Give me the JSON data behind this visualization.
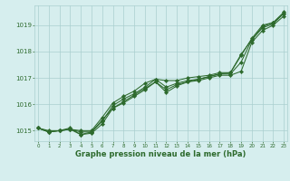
{
  "x": [
    0,
    1,
    2,
    3,
    4,
    5,
    6,
    7,
    8,
    9,
    10,
    11,
    12,
    13,
    14,
    15,
    16,
    17,
    18,
    19,
    20,
    21,
    22,
    23
  ],
  "line1": [
    1015.1,
    1015.0,
    1015.0,
    1015.1,
    1014.85,
    1014.95,
    1015.4,
    1015.85,
    1016.1,
    1016.35,
    1016.6,
    1016.85,
    1016.55,
    1016.75,
    1016.85,
    1016.95,
    1017.05,
    1017.15,
    1017.2,
    1017.9,
    1018.45,
    1018.95,
    1019.1,
    1019.45
  ],
  "line2": [
    1015.1,
    1014.95,
    1015.0,
    1015.05,
    1015.0,
    1015.0,
    1015.5,
    1016.05,
    1016.3,
    1016.5,
    1016.8,
    1016.95,
    1016.9,
    1016.9,
    1017.0,
    1017.05,
    1017.1,
    1017.2,
    1017.2,
    1017.85,
    1018.5,
    1019.0,
    1019.1,
    1019.5
  ],
  "line3": [
    1015.1,
    1014.95,
    1015.0,
    1015.05,
    1014.95,
    1014.95,
    1015.35,
    1015.95,
    1016.2,
    1016.4,
    1016.65,
    1016.95,
    1016.65,
    1016.8,
    1016.9,
    1016.95,
    1017.05,
    1017.15,
    1017.15,
    1017.6,
    1018.45,
    1018.9,
    1019.05,
    1019.45
  ],
  "line4": [
    1015.1,
    1014.95,
    1015.0,
    1015.05,
    1014.85,
    1014.9,
    1015.25,
    1015.85,
    1016.05,
    1016.3,
    1016.55,
    1016.85,
    1016.45,
    1016.7,
    1016.85,
    1016.9,
    1017.0,
    1017.1,
    1017.1,
    1017.25,
    1018.35,
    1018.8,
    1019.0,
    1019.35
  ],
  "bg_color": "#d6eeee",
  "grid_color": "#aacfcf",
  "line_color": "#2d6a2d",
  "marker": "D",
  "marker_size": 2.2,
  "linewidth": 0.75,
  "title": "Graphe pression niveau de la mer (hPa)",
  "xlabel_ticks": [
    0,
    1,
    2,
    3,
    4,
    5,
    6,
    7,
    8,
    9,
    10,
    11,
    12,
    13,
    14,
    15,
    16,
    17,
    18,
    19,
    20,
    21,
    22,
    23
  ],
  "yticks": [
    1015,
    1016,
    1017,
    1018,
    1019
  ],
  "ylim": [
    1014.6,
    1019.75
  ],
  "xlim": [
    -0.3,
    23.3
  ]
}
